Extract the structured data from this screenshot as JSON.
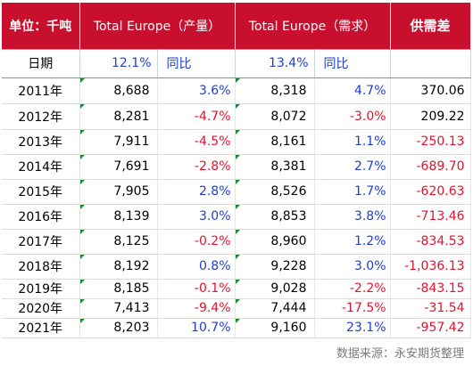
{
  "header": {
    "unit": "单位：千吨",
    "production": "Total Europe（产量）",
    "demand": "Total Europe（需求）",
    "gap": "供需差"
  },
  "subheader": {
    "label": "日期",
    "production_pct": "12.1%",
    "production_label": "同比",
    "demand_pct": "13.4%",
    "demand_label": "同比",
    "gap": ""
  },
  "rows": [
    {
      "year": "2011年",
      "production": "8,688",
      "production_yoy": "3.6%",
      "demand": "8,318",
      "demand_yoy": "4.7%",
      "gap": "370.06"
    },
    {
      "year": "2012年",
      "production": "8,281",
      "production_yoy": "-4.7%",
      "demand": "8,072",
      "demand_yoy": "-3.0%",
      "gap": "209.22"
    },
    {
      "year": "2013年",
      "production": "7,911",
      "production_yoy": "-4.5%",
      "demand": "8,161",
      "demand_yoy": "1.1%",
      "gap": "-250.13"
    },
    {
      "year": "2014年",
      "production": "7,691",
      "production_yoy": "-2.8%",
      "demand": "8,381",
      "demand_yoy": "2.7%",
      "gap": "-689.70"
    },
    {
      "year": "2015年",
      "production": "7,905",
      "production_yoy": "2.8%",
      "demand": "8,526",
      "demand_yoy": "1.7%",
      "gap": "-620.63"
    },
    {
      "year": "2016年",
      "production": "8,139",
      "production_yoy": "3.0%",
      "demand": "8,853",
      "demand_yoy": "3.8%",
      "gap": "-713.46"
    },
    {
      "year": "2017年",
      "production": "8,125",
      "production_yoy": "-0.2%",
      "demand": "8,960",
      "demand_yoy": "1.2%",
      "gap": "-834.53"
    },
    {
      "year": "2018年",
      "production": "8,192",
      "production_yoy": "0.8%",
      "demand": "9,228",
      "demand_yoy": "3.0%",
      "gap": "-1,036.13"
    },
    {
      "year": "2019年",
      "production": "8,185",
      "production_yoy": "-0.1%",
      "demand": "9,028",
      "demand_yoy": "-2.2%",
      "gap": "-843.15"
    },
    {
      "year": "2020年",
      "production": "7,413",
      "production_yoy": "-9.4%",
      "demand": "7,444",
      "demand_yoy": "-17.5%",
      "gap": "-31.54"
    },
    {
      "year": "2021年",
      "production": "8,203",
      "production_yoy": "10.7%",
      "demand": "9,160",
      "demand_yoy": "23.1%",
      "gap": "-957.42"
    }
  ],
  "source": "数据来源：永安期货整理",
  "colors": {
    "header_bg": "#c8102e",
    "header_text": "#ffffff",
    "negative": "#e8112d",
    "positive_pct": "#1f3fd0",
    "marker": "#1a8a2e"
  }
}
